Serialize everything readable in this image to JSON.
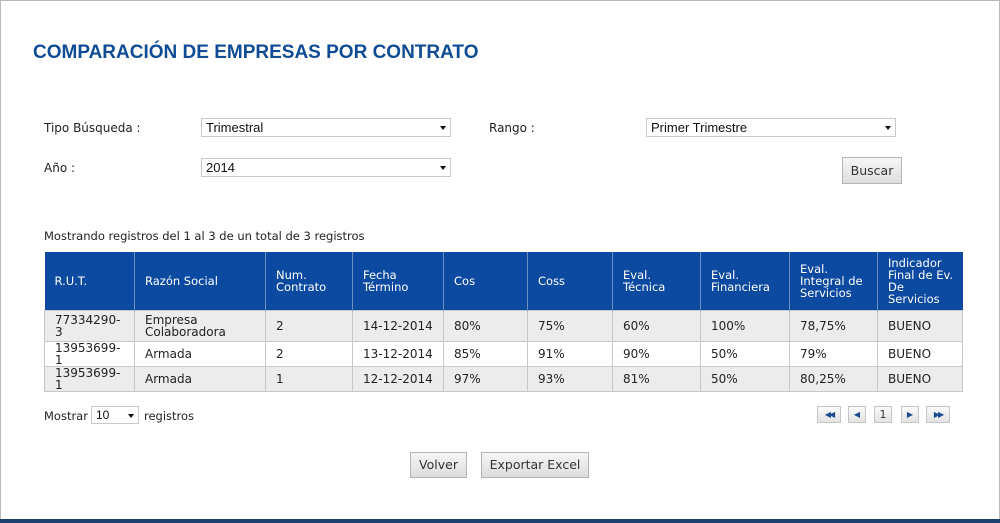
{
  "header": {
    "title": "COMPARACIÓN DE EMPRESAS POR CONTRATO"
  },
  "filters": {
    "tipo_busqueda_label": "Tipo Búsqueda :",
    "tipo_busqueda_value": "Trimestral",
    "rango_label": "Rango :",
    "rango_value": "Primer Trimestre",
    "anio_label": "Año :",
    "anio_value": "2014",
    "buscar_label": "Buscar"
  },
  "table": {
    "info": "Mostrando registros del 1 al 3 de un total de 3 registros",
    "columns": [
      "R.U.T.",
      "Razón Social",
      "Num. Contrato",
      "Fecha Término",
      "Cos",
      "Coss",
      "Eval. Técnica",
      "Eval. Financiera",
      "Eval. Integral de Servicios",
      "Indicador Final de Ev. De Servicios"
    ],
    "rows": [
      [
        "77334290-3",
        "Empresa Colaboradora",
        "2",
        "14-12-2014",
        "80%",
        "75%",
        "60%",
        "100%",
        "78,75%",
        "BUENO"
      ],
      [
        "13953699-1",
        "Armada",
        "2",
        "13-12-2014",
        "85%",
        "91%",
        "90%",
        "50%",
        "79%",
        "BUENO"
      ],
      [
        "13953699-1",
        "Armada",
        "1",
        "12-12-2014",
        "97%",
        "93%",
        "81%",
        "50%",
        "80,25%",
        "BUENO"
      ]
    ]
  },
  "length_menu": {
    "prefix": "Mostrar",
    "value": "10",
    "suffix": "registros"
  },
  "pager": {
    "first": "◀◀",
    "prev": "◀",
    "page": "1",
    "next": "▶",
    "last": "▶▶"
  },
  "actions": {
    "volver_label": "Volver",
    "exportar_label": "Exportar Excel"
  }
}
